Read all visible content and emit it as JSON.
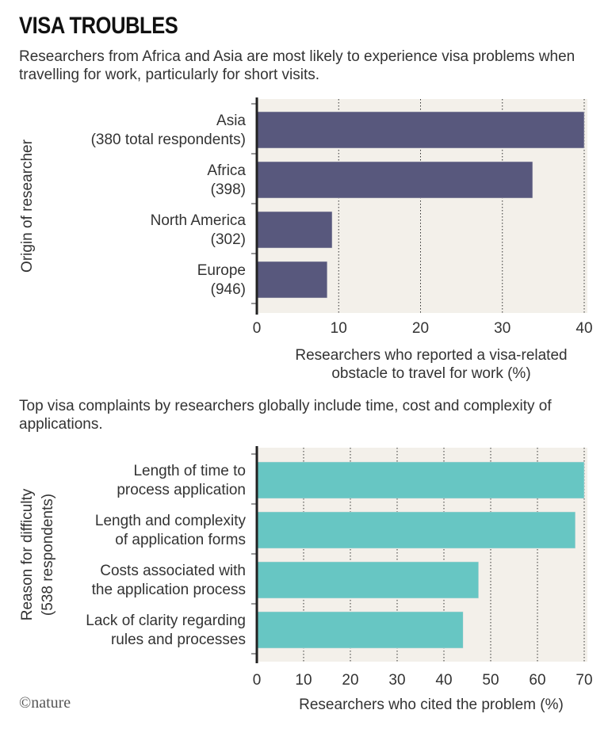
{
  "title": "VISA TROUBLES",
  "logo": "©nature",
  "chart_data": [
    {
      "type": "bar",
      "orientation": "horizontal",
      "subtitle": "Researchers from Africa and Asia are most likely to experience visa problems when travelling for work, particularly for short visits.",
      "categories": [
        [
          "Asia",
          "(380 total respondents)"
        ],
        [
          "Africa",
          "(398)"
        ],
        [
          "North America",
          "(302)"
        ],
        [
          "Europe",
          "(946)"
        ]
      ],
      "values": [
        40,
        33.7,
        9.2,
        8.6
      ],
      "xlim": [
        0,
        40
      ],
      "xticks": [
        0,
        10,
        20,
        30,
        40
      ],
      "ylabel": [
        "Origin of researcher"
      ],
      "xlabel": [
        "Researchers who reported a visa-related",
        "obstacle to travel for work (%)"
      ],
      "color": "#58587d",
      "grid": "vertical dotted"
    },
    {
      "type": "bar",
      "orientation": "horizontal",
      "subtitle": "Top visa complaints by researchers globally include time, cost and complexity of applications.",
      "categories": [
        [
          "Length of time to",
          "process application"
        ],
        [
          "Length and complexity",
          "of application forms"
        ],
        [
          "Costs associated with",
          "the application process"
        ],
        [
          "Lack of clarity regarding",
          "rules and processes"
        ]
      ],
      "values": [
        70,
        68.1,
        47.4,
        44.1
      ],
      "xlim": [
        0,
        70
      ],
      "xticks": [
        0,
        10,
        20,
        30,
        40,
        50,
        60,
        70
      ],
      "ylabel": [
        "Reason for difficulty",
        "(538 respondents)"
      ],
      "xlabel": [
        "Researchers who cited the problem (%)"
      ],
      "color": "#67c6c3",
      "grid": "vertical dotted"
    }
  ]
}
